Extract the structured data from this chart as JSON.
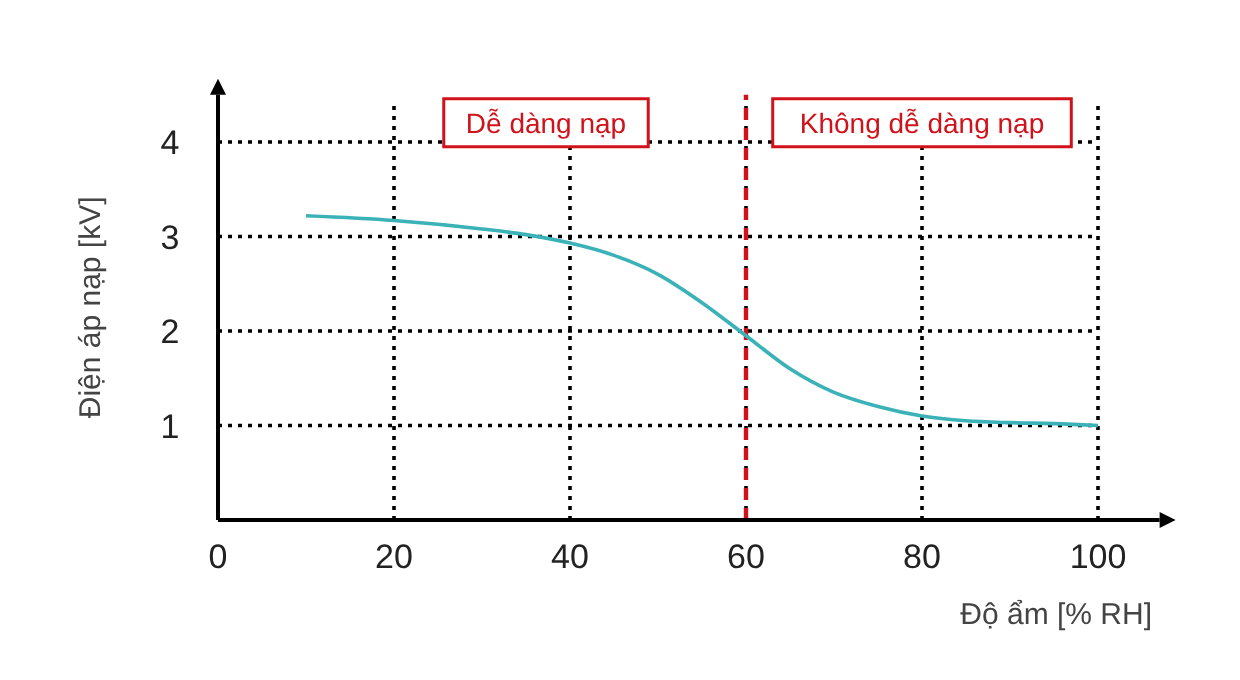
{
  "chart_data": {
    "type": "line",
    "xlabel": "Độ ẩm [% RH]",
    "ylabel": "Điện áp nạp [kV]",
    "xlim": [
      0,
      107
    ],
    "ylim": [
      0,
      4.5
    ],
    "xticks": [
      0,
      20,
      40,
      60,
      80,
      100
    ],
    "yticks": [
      1,
      2,
      3,
      4
    ],
    "grid": true,
    "marker": "none",
    "line_style": "solid",
    "series": [
      {
        "color": "#3ab2b8",
        "x": [
          10,
          20,
          30,
          35,
          40,
          45,
          50,
          55,
          60,
          65,
          70,
          75,
          80,
          85,
          90,
          95,
          100
        ],
        "values": [
          3.22,
          3.17,
          3.08,
          3.02,
          2.93,
          2.8,
          2.6,
          2.3,
          1.95,
          1.6,
          1.35,
          1.2,
          1.1,
          1.05,
          1.03,
          1.02,
          1.0
        ]
      }
    ],
    "ref_lines": [
      {
        "axis": "x",
        "value": 60,
        "color": "#d0121b",
        "line_style": "dashed"
      }
    ],
    "annotations": [
      "Dễ dàng nạp",
      "Không dễ dàng nạp"
    ]
  }
}
